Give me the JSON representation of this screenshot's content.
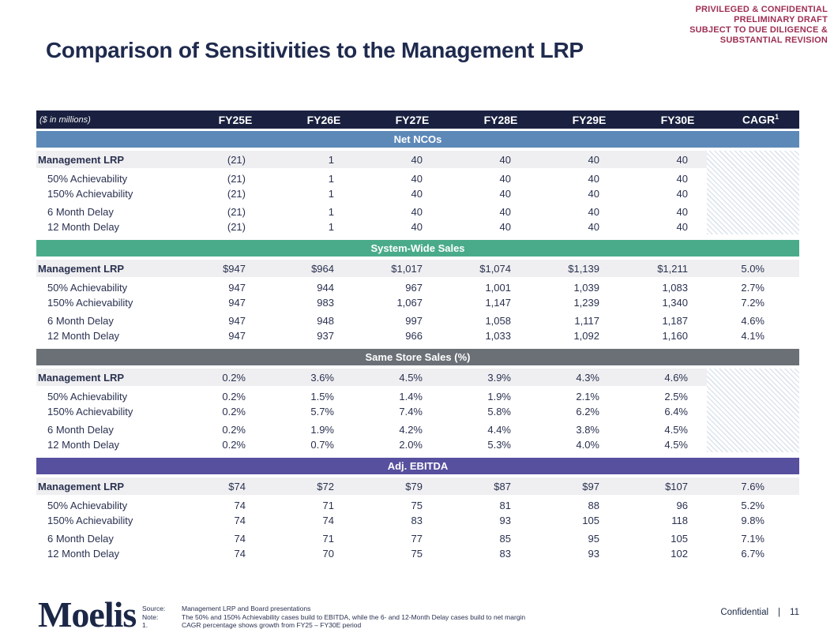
{
  "disclaimer": {
    "lines": [
      "PRIVILEGED & CONFIDENTIAL",
      "PRELIMINARY DRAFT",
      "SUBJECT TO DUE DILIGENCE &",
      "SUBSTANTIAL REVISION"
    ]
  },
  "title": "Comparison of Sensitivities to the Management LRP",
  "colors": {
    "header_bg": "#1a2140",
    "net_ncos_band": "#5d89b8",
    "system_wide_band": "#4aab8b",
    "same_store_band": "#6b7077",
    "adj_ebitda_band": "#57509e",
    "mgmt_row_bg": "#efeff1",
    "disclaimer_text": "#9e2f52",
    "title_text": "#1f2a4e"
  },
  "table": {
    "unit_label": "($ in millions)",
    "columns": [
      "FY25E",
      "FY26E",
      "FY27E",
      "FY28E",
      "FY29E",
      "FY30E"
    ],
    "cagr_label": "CAGR",
    "cagr_superscript": "1",
    "sections": [
      {
        "name": "Net NCOs",
        "band_color": "#5d89b8",
        "has_cagr": false,
        "rows": [
          {
            "label": "Management LRP",
            "values": [
              "(21)",
              "1",
              "40",
              "40",
              "40",
              "40"
            ],
            "cagr": ""
          },
          {
            "label": "50% Achievability",
            "values": [
              "(21)",
              "1",
              "40",
              "40",
              "40",
              "40"
            ],
            "cagr": ""
          },
          {
            "label": "150% Achievability",
            "values": [
              "(21)",
              "1",
              "40",
              "40",
              "40",
              "40"
            ],
            "cagr": ""
          },
          {
            "label": "6 Month Delay",
            "values": [
              "(21)",
              "1",
              "40",
              "40",
              "40",
              "40"
            ],
            "cagr": ""
          },
          {
            "label": "12 Month Delay",
            "values": [
              "(21)",
              "1",
              "40",
              "40",
              "40",
              "40"
            ],
            "cagr": ""
          }
        ]
      },
      {
        "name": "System-Wide Sales",
        "band_color": "#4aab8b",
        "has_cagr": true,
        "rows": [
          {
            "label": "Management LRP",
            "values": [
              "$947",
              "$964",
              "$1,017",
              "$1,074",
              "$1,139",
              "$1,211"
            ],
            "cagr": "5.0%"
          },
          {
            "label": "50% Achievability",
            "values": [
              "947",
              "944",
              "967",
              "1,001",
              "1,039",
              "1,083"
            ],
            "cagr": "2.7%"
          },
          {
            "label": "150% Achievability",
            "values": [
              "947",
              "983",
              "1,067",
              "1,147",
              "1,239",
              "1,340"
            ],
            "cagr": "7.2%"
          },
          {
            "label": "6 Month Delay",
            "values": [
              "947",
              "948",
              "997",
              "1,058",
              "1,117",
              "1,187"
            ],
            "cagr": "4.6%"
          },
          {
            "label": "12 Month Delay",
            "values": [
              "947",
              "937",
              "966",
              "1,033",
              "1,092",
              "1,160"
            ],
            "cagr": "4.1%"
          }
        ]
      },
      {
        "name": "Same Store Sales (%)",
        "band_color": "#6b7077",
        "has_cagr": false,
        "rows": [
          {
            "label": "Management LRP",
            "values": [
              "0.2%",
              "3.6%",
              "4.5%",
              "3.9%",
              "4.3%",
              "4.6%"
            ],
            "cagr": ""
          },
          {
            "label": "50% Achievability",
            "values": [
              "0.2%",
              "1.5%",
              "1.4%",
              "1.9%",
              "2.1%",
              "2.5%"
            ],
            "cagr": ""
          },
          {
            "label": "150% Achievability",
            "values": [
              "0.2%",
              "5.7%",
              "7.4%",
              "5.8%",
              "6.2%",
              "6.4%"
            ],
            "cagr": ""
          },
          {
            "label": "6 Month Delay",
            "values": [
              "0.2%",
              "1.9%",
              "4.2%",
              "4.4%",
              "3.8%",
              "4.5%"
            ],
            "cagr": ""
          },
          {
            "label": "12 Month Delay",
            "values": [
              "0.2%",
              "0.7%",
              "2.0%",
              "5.3%",
              "4.0%",
              "4.5%"
            ],
            "cagr": ""
          }
        ]
      },
      {
        "name": "Adj. EBITDA",
        "band_color": "#57509e",
        "has_cagr": true,
        "rows": [
          {
            "label": "Management LRP",
            "values": [
              "$74",
              "$72",
              "$79",
              "$87",
              "$97",
              "$107"
            ],
            "cagr": "7.6%"
          },
          {
            "label": "50% Achievability",
            "values": [
              "74",
              "71",
              "75",
              "81",
              "88",
              "96"
            ],
            "cagr": "5.2%"
          },
          {
            "label": "150% Achievability",
            "values": [
              "74",
              "74",
              "83",
              "93",
              "105",
              "118"
            ],
            "cagr": "9.8%"
          },
          {
            "label": "6 Month Delay",
            "values": [
              "74",
              "71",
              "77",
              "85",
              "95",
              "105"
            ],
            "cagr": "7.1%"
          },
          {
            "label": "12 Month Delay",
            "values": [
              "74",
              "70",
              "75",
              "83",
              "93",
              "102"
            ],
            "cagr": "6.7%"
          }
        ]
      }
    ]
  },
  "footer": {
    "logo": "Moelis",
    "source_label": "Source:",
    "source_text": "Management LRP and Board presentations",
    "note_label": "Note:",
    "note_text": "The 50% and 150% Achievability cases build to EBITDA, while the 6- and 12-Month Delay cases build to net margin",
    "footnote_number": "1.",
    "footnote_text": "CAGR percentage shows growth from FY25 – FY30E period",
    "confidential": "Confidential",
    "separator": "|",
    "page_number": "11"
  }
}
